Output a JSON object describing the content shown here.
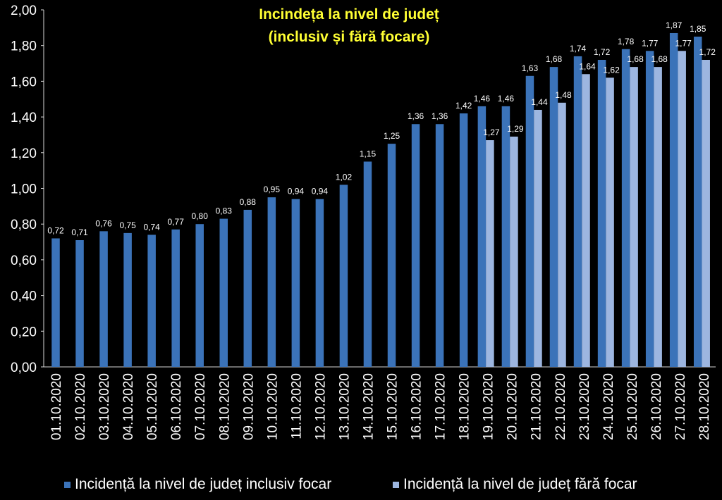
{
  "chart_data": {
    "type": "bar",
    "title": "Incindeța la nivel de județ",
    "subtitle": "(inclusiv și fără focare)",
    "categories": [
      "01.10.2020",
      "02.10.2020",
      "03.10.2020",
      "04.10.2020",
      "05.10.2020",
      "06.10.2020",
      "07.10.2020",
      "08.10.2020",
      "09.10.2020",
      "10.10.2020",
      "11.10.2020",
      "12.10.2020",
      "13.10.2020",
      "14.10.2020",
      "15.10.2020",
      "16.10.2020",
      "17.10.2020",
      "18.10.2020",
      "19.10.2020",
      "20.10.2020",
      "21.10.2020",
      "22.10.2020",
      "23.10.2020",
      "24.10.2020",
      "25.10.2020",
      "26.10.2020",
      "27.10.2020",
      "28.10.2020"
    ],
    "series": [
      {
        "name": "Incidență la nivel de județ inclusiv focar",
        "color": "#3b73b9",
        "values": [
          0.72,
          0.71,
          0.76,
          0.75,
          0.74,
          0.77,
          0.8,
          0.83,
          0.88,
          0.95,
          0.94,
          0.94,
          1.02,
          1.15,
          1.25,
          1.36,
          1.36,
          1.42,
          1.46,
          1.46,
          1.63,
          1.68,
          1.74,
          1.72,
          1.78,
          1.77,
          1.87,
          1.85
        ],
        "labels": [
          "0,72",
          "0,71",
          "0,76",
          "0,75",
          "0,74",
          "0,77",
          "0,80",
          "0,83",
          "0,88",
          "0,95",
          "0,94",
          "0,94",
          "1,02",
          "1,15",
          "1,25",
          "1,36",
          "1,36",
          "1,42",
          "1,46",
          "1,46",
          "1,63",
          "1,68",
          "1,74",
          "1,72",
          "1,78",
          "1,77",
          "1,87",
          "1,85"
        ]
      },
      {
        "name": "Incidență la nivel de județ fără focar",
        "color": "#9db6e0",
        "values": [
          null,
          null,
          null,
          null,
          null,
          null,
          null,
          null,
          null,
          null,
          null,
          null,
          null,
          null,
          null,
          null,
          null,
          null,
          1.27,
          1.29,
          1.44,
          1.48,
          1.64,
          1.62,
          1.68,
          1.68,
          1.77,
          1.72
        ],
        "labels": [
          null,
          null,
          null,
          null,
          null,
          null,
          null,
          null,
          null,
          null,
          null,
          null,
          null,
          null,
          null,
          null,
          null,
          null,
          "1,27",
          "1,29",
          "1,44",
          "1,48",
          "1,64",
          "1,62",
          "1,68",
          "1,68",
          "1,77",
          "1,72"
        ]
      }
    ],
    "ylim": [
      0,
      2
    ],
    "yticks": [
      0,
      0.2,
      0.4,
      0.6,
      0.8,
      1.0,
      1.2,
      1.4,
      1.6,
      1.8,
      2.0
    ],
    "ytick_labels": [
      "0,00",
      "0,20",
      "0,40",
      "0,60",
      "0,80",
      "1,00",
      "1,20",
      "1,40",
      "1,60",
      "1,80",
      "2,00"
    ],
    "grid": false,
    "legend_position": "bottom"
  }
}
